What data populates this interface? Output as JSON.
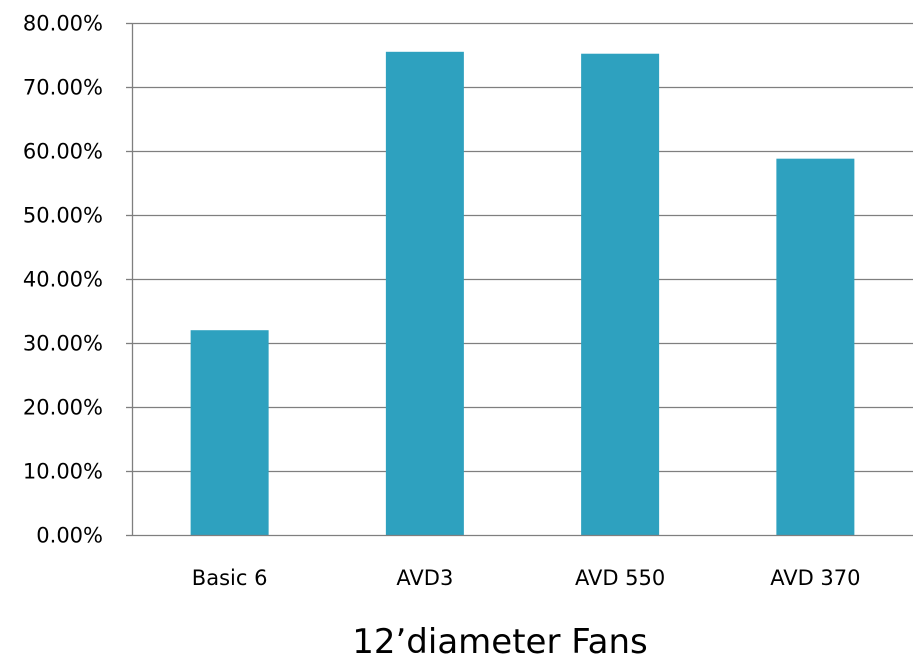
{
  "chart_data": {
    "type": "bar",
    "title": "",
    "xlabel": "12’diameter Fans",
    "ylabel": "",
    "categories": [
      "Basic 6",
      "AVD3",
      "AVD 550",
      "AVD 370"
    ],
    "series": [
      {
        "values": [
          0.32,
          0.755,
          0.752,
          0.588
        ]
      }
    ],
    "ylim": [
      0,
      0.8
    ],
    "yticks": [
      0,
      0.1,
      0.2,
      0.3,
      0.4,
      0.5,
      0.6,
      0.7,
      0.8
    ],
    "ytick_labels": [
      "0.00%",
      "10.00%",
      "20.00%",
      "30.00%",
      "40.00%",
      "50.00%",
      "60.00%",
      "70.00%",
      "80.00%"
    ],
    "grid": true,
    "legend": "none",
    "colors": {
      "bar": "#2ea1bf",
      "grid": "#7f7f7f",
      "axis": "#7f7f7f",
      "text": "#000000"
    }
  }
}
